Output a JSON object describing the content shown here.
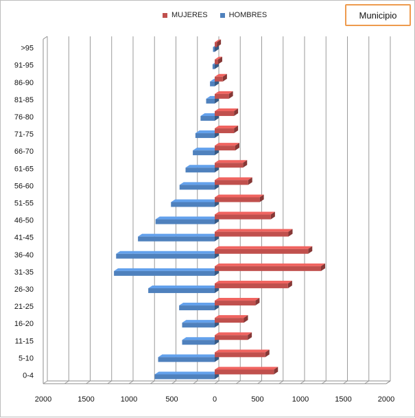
{
  "chart_data": {
    "type": "bar",
    "orientation": "horizontal",
    "title": "Municipio",
    "categories": [
      "0-4",
      "5-10",
      "11-15",
      "16-20",
      "21-25",
      "26-30",
      "31-35",
      "36-40",
      "41-45",
      "46-50",
      "51-55",
      "56-60",
      "61-65",
      "66-70",
      "71-75",
      "76-80",
      "81-85",
      "86-90",
      "91-95",
      ">95"
    ],
    "series": [
      {
        "name": "MUJERES",
        "color": "#c0504d",
        "values": [
          690,
          590,
          385,
          340,
          475,
          855,
          1240,
          1090,
          860,
          655,
          525,
          390,
          330,
          240,
          225,
          225,
          165,
          95,
          40,
          25
        ]
      },
      {
        "name": "HOMBRES",
        "color": "#4f81bd",
        "values": [
          700,
          660,
          380,
          380,
          415,
          775,
          1175,
          1150,
          895,
          690,
          510,
          410,
          340,
          255,
          225,
          165,
          100,
          55,
          25,
          20
        ]
      }
    ],
    "xlim": [
      -2000,
      2000
    ],
    "xticks": [
      "2000",
      "1500",
      "1000",
      "500",
      "0",
      "500",
      "1000",
      "1500",
      "2000"
    ],
    "grid": true,
    "legend_position": "top"
  }
}
